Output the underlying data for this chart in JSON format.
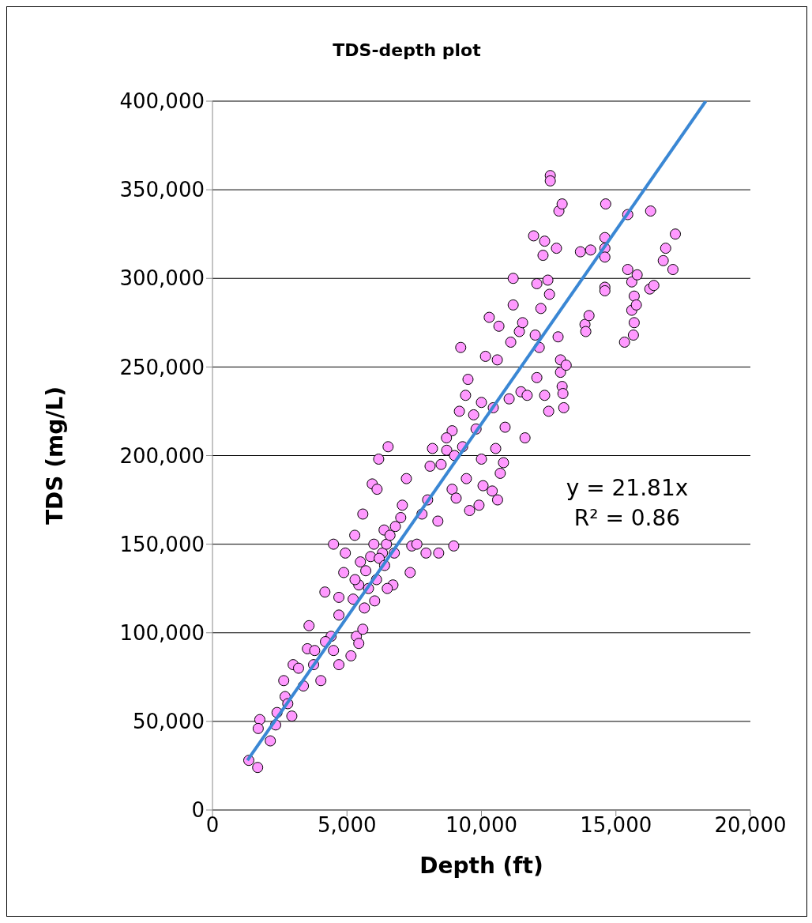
{
  "chart_data": {
    "type": "scatter",
    "title": "TDS-depth plot",
    "xlabel": "Depth (ft)",
    "ylabel": "TDS (mg/L)",
    "xlim": [
      0,
      20000
    ],
    "xticks": [
      0,
      {
        "value": 5000,
        "label": "5,000"
      },
      {
        "value": 10000,
        "label": "10,000"
      },
      {
        "value": 15000,
        "label": "15,000"
      },
      {
        "value": 20000,
        "label": "20,000"
      }
    ],
    "ylim": [
      0,
      400000
    ],
    "yticks": [
      0,
      {
        "value": 50000,
        "label": "50,000"
      },
      {
        "value": 100000,
        "label": "100,000"
      },
      {
        "value": 150000,
        "label": "150,000"
      },
      {
        "value": 200000,
        "label": "200,000"
      },
      {
        "value": 250000,
        "label": "250,000"
      },
      {
        "value": 300000,
        "label": "300,000"
      },
      {
        "value": 350000,
        "label": "350,000"
      },
      {
        "value": 400000,
        "label": "400,000"
      }
    ],
    "grid": "y",
    "annotations": [
      "y = 21.81x",
      "R² = 0.86"
    ],
    "series": [
      {
        "marker": "circle",
        "color": "#ff99ff",
        "x": [
          1350,
          1680,
          1760,
          1700,
          2150,
          2350,
          2650,
          2700,
          3000,
          2950,
          3380,
          3590,
          3530,
          3760,
          4030,
          4180,
          4410,
          4500,
          4700,
          4700,
          5150,
          5350,
          5440,
          5590,
          5230,
          4880,
          4940,
          5290,
          5590,
          5880,
          6320,
          6470,
          5940,
          6180,
          6530,
          6120,
          6380,
          6760,
          6710,
          5650,
          6030,
          5440,
          7060,
          7210,
          7410,
          7350,
          7790,
          7940,
          8090,
          8180,
          8380,
          8410,
          8710,
          8910,
          8910,
          8970,
          9060,
          9180,
          9230,
          9410,
          9500,
          9440,
          9560,
          9710,
          9910,
          10000,
          10000,
          10060,
          10150,
          10290,
          10440,
          10530,
          10590,
          10650,
          10700,
          10820,
          10880,
          11030,
          11090,
          11180,
          11180,
          11410,
          11530,
          11620,
          11470,
          11700,
          11940,
          12060,
          12000,
          12060,
          12150,
          12210,
          12290,
          12350,
          12470,
          12530,
          12350,
          12500,
          12560,
          12560,
          12790,
          12880,
          13000,
          12850,
          12940,
          12940,
          13000,
          13030,
          13060,
          13150,
          13680,
          13850,
          13880,
          14060,
          14000,
          14590,
          14590,
          14590,
          14590,
          14590,
          14620,
          15440,
          15440,
          15590,
          15590,
          15650,
          15680,
          15680,
          15790,
          15760,
          15320,
          16260,
          16290,
          16410,
          16760,
          16850,
          17120,
          17210,
          5500,
          5700,
          6000,
          6200,
          6400,
          6600,
          5300,
          5800,
          6100,
          6500,
          6800,
          7000,
          4700,
          4500,
          4200,
          3800,
          3200,
          2800,
          2400,
          7600,
          8000,
          8500,
          8700,
          9000,
          9300,
          9800,
          10400,
          10600
        ],
        "values": [
          28000,
          24000,
          51000,
          46000,
          39000,
          48000,
          73000,
          64000,
          82000,
          53000,
          70000,
          104000,
          91000,
          82000,
          73000,
          123000,
          98000,
          150000,
          82000,
          110000,
          87000,
          98000,
          94000,
          102000,
          119000,
          134000,
          145000,
          155000,
          167000,
          143000,
          145000,
          150000,
          184000,
          198000,
          205000,
          181000,
          158000,
          145000,
          127000,
          114000,
          118000,
          127000,
          172000,
          187000,
          149000,
          134000,
          167000,
          145000,
          194000,
          204000,
          163000,
          145000,
          203000,
          214000,
          181000,
          149000,
          176000,
          225000,
          261000,
          234000,
          243000,
          187000,
          169000,
          223000,
          172000,
          230000,
          198000,
          183000,
          256000,
          278000,
          227000,
          204000,
          254000,
          273000,
          190000,
          196000,
          216000,
          232000,
          264000,
          285000,
          300000,
          270000,
          275000,
          210000,
          236000,
          234000,
          324000,
          297000,
          268000,
          244000,
          261000,
          283000,
          313000,
          321000,
          299000,
          291000,
          234000,
          225000,
          358000,
          355000,
          317000,
          338000,
          342000,
          267000,
          254000,
          247000,
          239000,
          235000,
          227000,
          251000,
          315000,
          274000,
          270000,
          316000,
          279000,
          323000,
          317000,
          312000,
          295000,
          293000,
          342000,
          336000,
          305000,
          298000,
          282000,
          268000,
          275000,
          290000,
          302000,
          285000,
          264000,
          294000,
          338000,
          296000,
          310000,
          317000,
          305000,
          325000,
          140000,
          135000,
          150000,
          142000,
          138000,
          155000,
          130000,
          125000,
          130000,
          125000,
          160000,
          165000,
          120000,
          90000,
          95000,
          90000,
          80000,
          60000,
          55000,
          150000,
          175000,
          195000,
          210000,
          200000,
          205000,
          215000,
          180000,
          175000
        ]
      },
      {
        "type": "line",
        "marker": "none",
        "color": "#3a87d4",
        "x": [
          1300,
          18340
        ],
        "values": [
          28000,
          400000
        ]
      }
    ]
  }
}
